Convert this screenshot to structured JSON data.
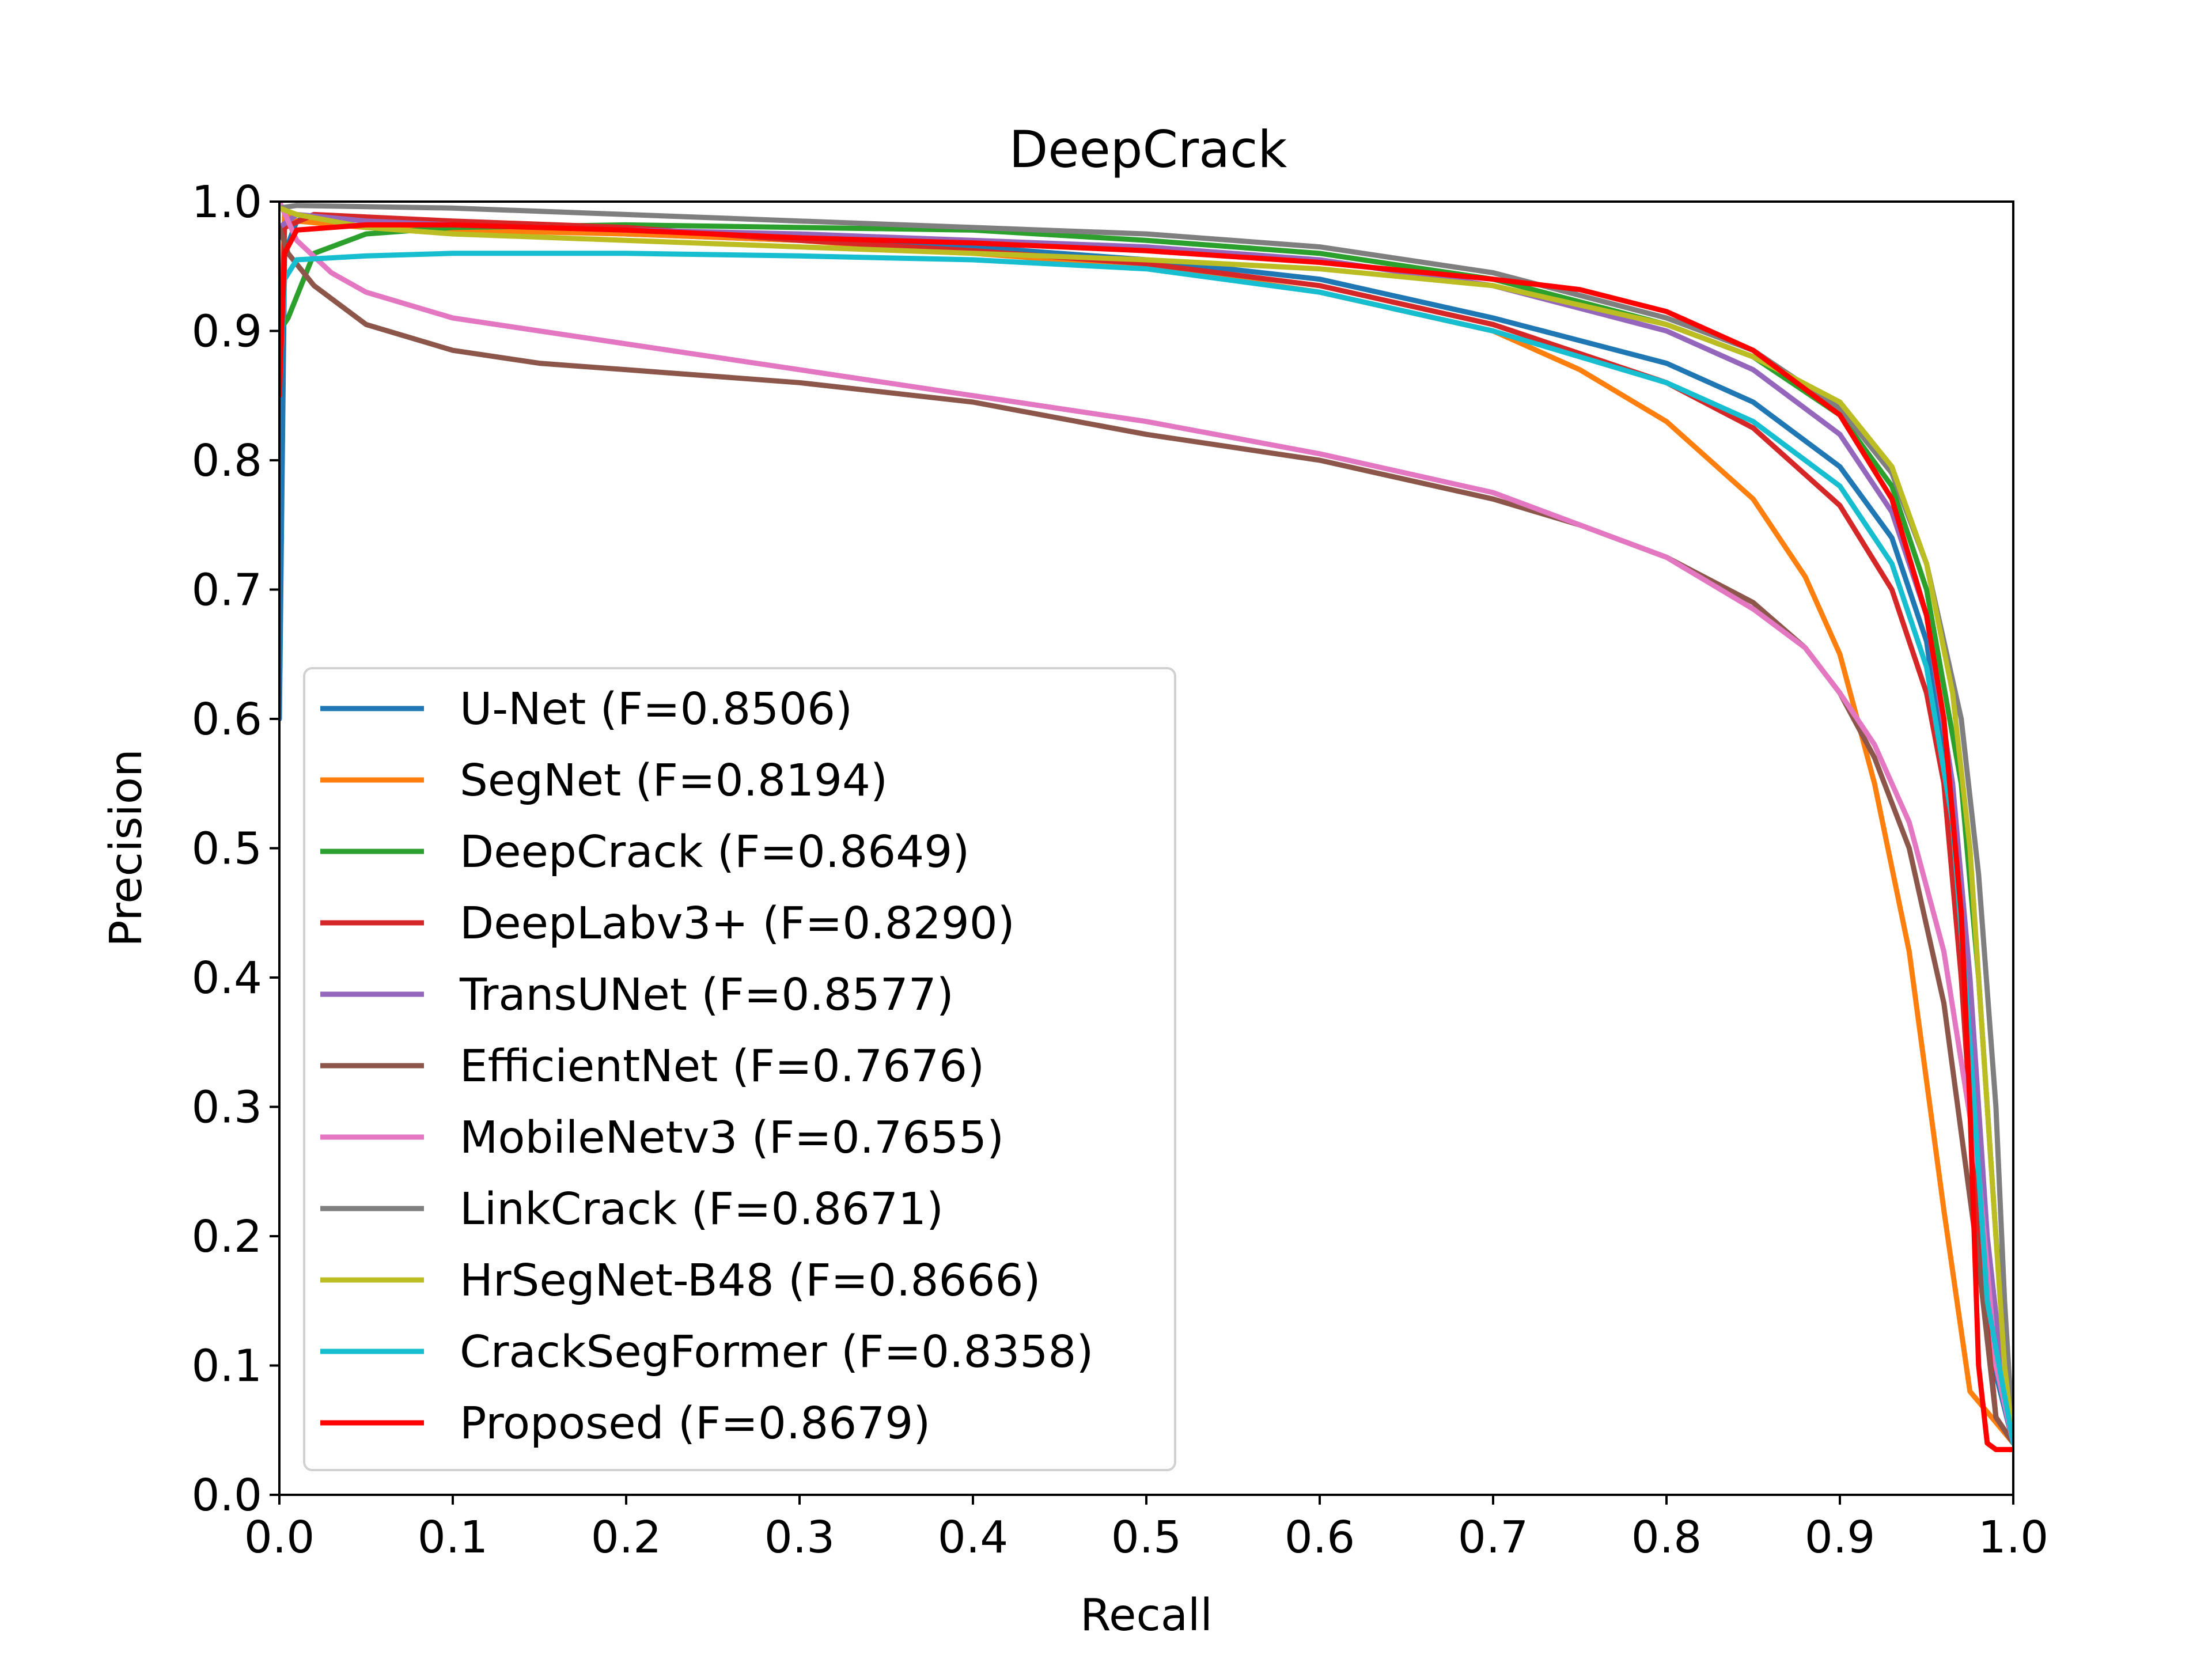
{
  "chart_data": {
    "type": "line",
    "title": "DeepCrack",
    "xlabel": "Recall",
    "ylabel": "Precision",
    "xlim": [
      0.0,
      1.0
    ],
    "ylim": [
      0.0,
      1.0
    ],
    "xticks": [
      "0.0",
      "0.1",
      "0.2",
      "0.3",
      "0.4",
      "0.5",
      "0.6",
      "0.7",
      "0.8",
      "0.9",
      "1.0"
    ],
    "yticks": [
      "0.0",
      "0.1",
      "0.2",
      "0.3",
      "0.4",
      "0.5",
      "0.6",
      "0.7",
      "0.8",
      "0.9",
      "1.0"
    ],
    "grid": false,
    "legend_position": "lower-left",
    "series": [
      {
        "name": "U-Net (F=0.8506)",
        "color": "#1f77b4",
        "points": [
          [
            0,
            0.6
          ],
          [
            0.003,
            0.96
          ],
          [
            0.01,
            0.985
          ],
          [
            0.02,
            0.99
          ],
          [
            0.05,
            0.985
          ],
          [
            0.1,
            0.98
          ],
          [
            0.2,
            0.975
          ],
          [
            0.3,
            0.97
          ],
          [
            0.4,
            0.965
          ],
          [
            0.5,
            0.955
          ],
          [
            0.6,
            0.94
          ],
          [
            0.7,
            0.91
          ],
          [
            0.8,
            0.875
          ],
          [
            0.85,
            0.845
          ],
          [
            0.9,
            0.795
          ],
          [
            0.93,
            0.74
          ],
          [
            0.95,
            0.66
          ],
          [
            0.965,
            0.52
          ],
          [
            0.975,
            0.3
          ],
          [
            0.985,
            0.12
          ],
          [
            1.0,
            0.04
          ]
        ]
      },
      {
        "name": "SegNet (F=0.8194)",
        "color": "#ff7f0e",
        "points": [
          [
            0,
            0.85
          ],
          [
            0.003,
            0.99
          ],
          [
            0.01,
            0.985
          ],
          [
            0.05,
            0.98
          ],
          [
            0.1,
            0.978
          ],
          [
            0.2,
            0.975
          ],
          [
            0.3,
            0.97
          ],
          [
            0.4,
            0.96
          ],
          [
            0.5,
            0.95
          ],
          [
            0.6,
            0.93
          ],
          [
            0.7,
            0.9
          ],
          [
            0.75,
            0.87
          ],
          [
            0.8,
            0.83
          ],
          [
            0.85,
            0.77
          ],
          [
            0.88,
            0.71
          ],
          [
            0.9,
            0.65
          ],
          [
            0.92,
            0.55
          ],
          [
            0.94,
            0.42
          ],
          [
            0.96,
            0.22
          ],
          [
            0.975,
            0.08
          ],
          [
            1.0,
            0.04
          ]
        ]
      },
      {
        "name": "DeepCrack (F=0.8649)",
        "color": "#2ca02c",
        "points": [
          [
            0,
            0.9
          ],
          [
            0.005,
            0.91
          ],
          [
            0.02,
            0.96
          ],
          [
            0.05,
            0.975
          ],
          [
            0.1,
            0.98
          ],
          [
            0.2,
            0.982
          ],
          [
            0.3,
            0.98
          ],
          [
            0.4,
            0.978
          ],
          [
            0.5,
            0.97
          ],
          [
            0.6,
            0.96
          ],
          [
            0.7,
            0.94
          ],
          [
            0.8,
            0.905
          ],
          [
            0.85,
            0.88
          ],
          [
            0.9,
            0.835
          ],
          [
            0.93,
            0.78
          ],
          [
            0.95,
            0.7
          ],
          [
            0.97,
            0.55
          ],
          [
            0.98,
            0.4
          ],
          [
            0.99,
            0.2
          ],
          [
            1.0,
            0.04
          ]
        ]
      },
      {
        "name": "DeepLabv3+ (F=0.8290)",
        "color": "#d62728",
        "points": [
          [
            0,
            0.85
          ],
          [
            0.003,
            0.98
          ],
          [
            0.02,
            0.99
          ],
          [
            0.1,
            0.985
          ],
          [
            0.2,
            0.98
          ],
          [
            0.3,
            0.97
          ],
          [
            0.4,
            0.962
          ],
          [
            0.5,
            0.952
          ],
          [
            0.6,
            0.935
          ],
          [
            0.7,
            0.905
          ],
          [
            0.8,
            0.86
          ],
          [
            0.85,
            0.825
          ],
          [
            0.9,
            0.765
          ],
          [
            0.93,
            0.7
          ],
          [
            0.95,
            0.62
          ],
          [
            0.96,
            0.55
          ],
          [
            0.97,
            0.4
          ],
          [
            0.98,
            0.2
          ],
          [
            0.99,
            0.06
          ],
          [
            1.0,
            0.04
          ]
        ]
      },
      {
        "name": "TransUNet (F=0.8577)",
        "color": "#9467bd",
        "points": [
          [
            0,
            0.98
          ],
          [
            0.01,
            0.99
          ],
          [
            0.05,
            0.985
          ],
          [
            0.1,
            0.982
          ],
          [
            0.2,
            0.978
          ],
          [
            0.3,
            0.975
          ],
          [
            0.4,
            0.97
          ],
          [
            0.5,
            0.965
          ],
          [
            0.6,
            0.955
          ],
          [
            0.7,
            0.935
          ],
          [
            0.8,
            0.9
          ],
          [
            0.85,
            0.87
          ],
          [
            0.9,
            0.82
          ],
          [
            0.93,
            0.76
          ],
          [
            0.95,
            0.68
          ],
          [
            0.965,
            0.55
          ],
          [
            0.975,
            0.4
          ],
          [
            0.985,
            0.2
          ],
          [
            0.995,
            0.08
          ],
          [
            1.0,
            0.04
          ]
        ]
      },
      {
        "name": "EfficientNet (F=0.7676)",
        "color": "#8c564b",
        "points": [
          [
            0,
            0.98
          ],
          [
            0.005,
            0.96
          ],
          [
            0.02,
            0.935
          ],
          [
            0.05,
            0.905
          ],
          [
            0.1,
            0.885
          ],
          [
            0.15,
            0.875
          ],
          [
            0.2,
            0.87
          ],
          [
            0.3,
            0.86
          ],
          [
            0.4,
            0.845
          ],
          [
            0.5,
            0.82
          ],
          [
            0.6,
            0.8
          ],
          [
            0.7,
            0.77
          ],
          [
            0.75,
            0.75
          ],
          [
            0.8,
            0.725
          ],
          [
            0.85,
            0.69
          ],
          [
            0.88,
            0.655
          ],
          [
            0.9,
            0.62
          ],
          [
            0.92,
            0.57
          ],
          [
            0.94,
            0.5
          ],
          [
            0.96,
            0.38
          ],
          [
            0.98,
            0.18
          ],
          [
            0.99,
            0.06
          ],
          [
            1.0,
            0.04
          ]
        ]
      },
      {
        "name": "MobileNetv3 (F=0.7655)",
        "color": "#e377c2",
        "points": [
          [
            0,
            1.0
          ],
          [
            0.01,
            0.97
          ],
          [
            0.03,
            0.945
          ],
          [
            0.05,
            0.93
          ],
          [
            0.1,
            0.91
          ],
          [
            0.2,
            0.89
          ],
          [
            0.3,
            0.87
          ],
          [
            0.4,
            0.85
          ],
          [
            0.5,
            0.83
          ],
          [
            0.6,
            0.805
          ],
          [
            0.7,
            0.775
          ],
          [
            0.8,
            0.725
          ],
          [
            0.85,
            0.685
          ],
          [
            0.88,
            0.655
          ],
          [
            0.9,
            0.62
          ],
          [
            0.92,
            0.58
          ],
          [
            0.94,
            0.52
          ],
          [
            0.96,
            0.42
          ],
          [
            0.98,
            0.25
          ],
          [
            0.99,
            0.1
          ],
          [
            1.0,
            0.04
          ]
        ]
      },
      {
        "name": "LinkCrack (F=0.8671)",
        "color": "#7f7f7f",
        "points": [
          [
            0,
            0.995
          ],
          [
            0.01,
            0.997
          ],
          [
            0.1,
            0.995
          ],
          [
            0.2,
            0.99
          ],
          [
            0.3,
            0.985
          ],
          [
            0.4,
            0.98
          ],
          [
            0.5,
            0.975
          ],
          [
            0.6,
            0.965
          ],
          [
            0.7,
            0.945
          ],
          [
            0.8,
            0.91
          ],
          [
            0.85,
            0.885
          ],
          [
            0.9,
            0.84
          ],
          [
            0.93,
            0.79
          ],
          [
            0.95,
            0.72
          ],
          [
            0.97,
            0.6
          ],
          [
            0.98,
            0.48
          ],
          [
            0.99,
            0.3
          ],
          [
            0.995,
            0.15
          ],
          [
            1.0,
            0.04
          ]
        ]
      },
      {
        "name": "HrSegNet-B48 (F=0.8666)",
        "color": "#bcbd22",
        "points": [
          [
            0,
            0.995
          ],
          [
            0.01,
            0.99
          ],
          [
            0.05,
            0.98
          ],
          [
            0.1,
            0.975
          ],
          [
            0.2,
            0.97
          ],
          [
            0.3,
            0.965
          ],
          [
            0.4,
            0.96
          ],
          [
            0.5,
            0.955
          ],
          [
            0.6,
            0.948
          ],
          [
            0.7,
            0.935
          ],
          [
            0.8,
            0.905
          ],
          [
            0.85,
            0.88
          ],
          [
            0.9,
            0.845
          ],
          [
            0.93,
            0.795
          ],
          [
            0.95,
            0.72
          ],
          [
            0.965,
            0.62
          ],
          [
            0.975,
            0.5
          ],
          [
            0.985,
            0.3
          ],
          [
            0.995,
            0.1
          ],
          [
            1.0,
            0.04
          ]
        ]
      },
      {
        "name": "CrackSegFormer (F=0.8358)",
        "color": "#17becf",
        "points": [
          [
            0,
            0.85
          ],
          [
            0.003,
            0.94
          ],
          [
            0.01,
            0.955
          ],
          [
            0.05,
            0.958
          ],
          [
            0.1,
            0.96
          ],
          [
            0.2,
            0.96
          ],
          [
            0.3,
            0.958
          ],
          [
            0.4,
            0.955
          ],
          [
            0.5,
            0.948
          ],
          [
            0.6,
            0.93
          ],
          [
            0.7,
            0.9
          ],
          [
            0.8,
            0.86
          ],
          [
            0.85,
            0.83
          ],
          [
            0.9,
            0.78
          ],
          [
            0.93,
            0.72
          ],
          [
            0.95,
            0.64
          ],
          [
            0.965,
            0.52
          ],
          [
            0.975,
            0.35
          ],
          [
            0.985,
            0.15
          ],
          [
            1.0,
            0.04
          ]
        ]
      },
      {
        "name": "Proposed (F=0.8679)",
        "color": "#ff0000",
        "points": [
          [
            0,
            0.85
          ],
          [
            0.003,
            0.96
          ],
          [
            0.01,
            0.978
          ],
          [
            0.05,
            0.982
          ],
          [
            0.1,
            0.982
          ],
          [
            0.2,
            0.978
          ],
          [
            0.3,
            0.972
          ],
          [
            0.4,
            0.968
          ],
          [
            0.5,
            0.962
          ],
          [
            0.6,
            0.953
          ],
          [
            0.7,
            0.94
          ],
          [
            0.75,
            0.932
          ],
          [
            0.8,
            0.915
          ],
          [
            0.85,
            0.885
          ],
          [
            0.9,
            0.835
          ],
          [
            0.93,
            0.77
          ],
          [
            0.95,
            0.68
          ],
          [
            0.96,
            0.6
          ],
          [
            0.97,
            0.45
          ],
          [
            0.975,
            0.3
          ],
          [
            0.98,
            0.1
          ],
          [
            0.985,
            0.04
          ],
          [
            0.99,
            0.035
          ],
          [
            1.0,
            0.035
          ]
        ]
      }
    ]
  }
}
